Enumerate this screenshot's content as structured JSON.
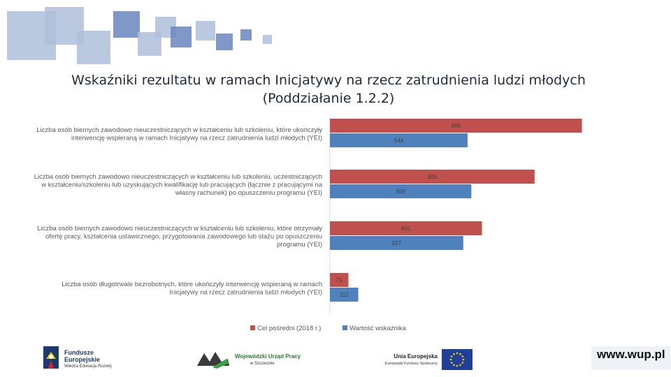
{
  "slide": {
    "title_line1": "Wskaźniki rezultatu w ramach Inicjatywy na rzecz zatrudnienia ludzi młodych",
    "title_line2": "(Poddziałanie 1.2.2)",
    "website": "www.wup.pl"
  },
  "logos": {
    "fe_line1": "Fundusze",
    "fe_line2": "Europejskie",
    "fe_line3": "Wiedza Edukacja Rozwój",
    "wup_line1": "Wojewódzki Urząd Pracy",
    "wup_line2": "w Szczecinie",
    "ue_line1": "Unia Europejska",
    "ue_line2": "Europejski Fundusz Społeczny"
  },
  "colors": {
    "target_series": "#c0504d",
    "value_series": "#4f81bd",
    "deco_dark": "#6a86bd",
    "deco_light": "#aebfdb"
  },
  "chart_data": {
    "type": "bar",
    "orientation": "horizontal",
    "categories": [
      [
        "Liczba osób biernych zawodowo nieuczestniczących w kształceniu lub szkoleniu, które ukończyły",
        "interwencję wspieraną w ramach Inicjatywy na rzecz zatrudnienia ludzi młodych (YEI)"
      ],
      [
        "Liczba osób biernych zawodowo nieuczestniczących w kształceniu lub szkoleniu, uczestniczących",
        "w kształceniu/szkoleniu lub uzyskujących kwalifikację lub pracujących (łącznie z pracującymi na",
        "własny rachunek) po opuszczeniu programu (YEI)"
      ],
      [
        "Liczba osób biernych zawodowo nieuczestniczących w kształceniu lub szkoleniu, które otrzymały",
        "ofertę pracy, kształcenia ustawicznego, przygotowania zawodowego lub stażu po opuszczeniu",
        "programu (YEI)"
      ],
      [
        "Liczba osób długotrwale bezrobotnych, które ukończyły interwencję wspieraną w ramach",
        "Inicjatywy na rzecz zatrudnienia ludzi młodych (YEI)"
      ]
    ],
    "series": [
      {
        "name": "Cel pośredni (2018 r.)",
        "values": [
          996,
          809,
          601,
          73
        ],
        "color": "#c0504d"
      },
      {
        "name": "Wartość wskaźnika",
        "values": [
          544,
          559,
          527,
          112
        ],
        "color": "#4f81bd"
      }
    ],
    "xlim": [
      0,
      1000
    ],
    "grid": false,
    "legend_position": "bottom"
  }
}
